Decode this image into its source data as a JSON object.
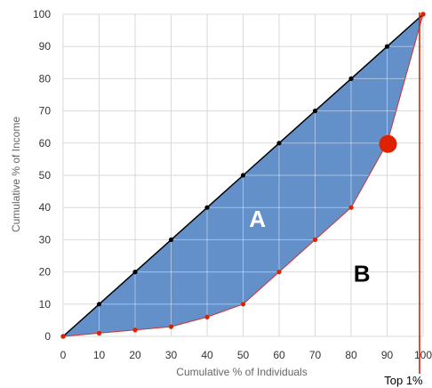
{
  "chart_data": {
    "type": "area",
    "xlabel": "Cumulative % of Individuals",
    "ylabel": "Cumulative % of Income",
    "xlim": [
      0,
      100
    ],
    "ylim": [
      0,
      100
    ],
    "x_ticks": [
      "0",
      "10",
      "20",
      "30",
      "40",
      "50",
      "60",
      "70",
      "80",
      "90",
      "100"
    ],
    "y_ticks": [
      "0",
      "10",
      "20",
      "30",
      "40",
      "50",
      "60",
      "70",
      "80",
      "90",
      "100"
    ],
    "grid": true,
    "series": [
      {
        "x": [
          0,
          10,
          20,
          30,
          40,
          50,
          60,
          70,
          80,
          90,
          100
        ],
        "y": [
          0,
          10,
          20,
          30,
          40,
          50,
          60,
          70,
          80,
          90,
          100
        ],
        "color": "#000000",
        "marker_color": "#000000"
      },
      {
        "x": [
          0,
          10,
          20,
          30,
          40,
          50,
          60,
          70,
          80,
          90,
          100
        ],
        "y": [
          0,
          1,
          2,
          3,
          6,
          10,
          20,
          30,
          40,
          60,
          100
        ],
        "color": "#cc3333",
        "marker_color": "#dd2200"
      }
    ],
    "fill_color": "#5b8ac6",
    "highlight_point": {
      "x": 90,
      "y": 60,
      "color": "#dd2200"
    },
    "vertical_line": {
      "x": 99,
      "label": "Top 1%",
      "color": "#dd2200"
    },
    "annotations": [
      {
        "text": "A",
        "x": 54,
        "y": 34,
        "color": "#ffffff"
      },
      {
        "text": "B",
        "x": 83,
        "y": 17,
        "color": "#000000"
      }
    ]
  }
}
